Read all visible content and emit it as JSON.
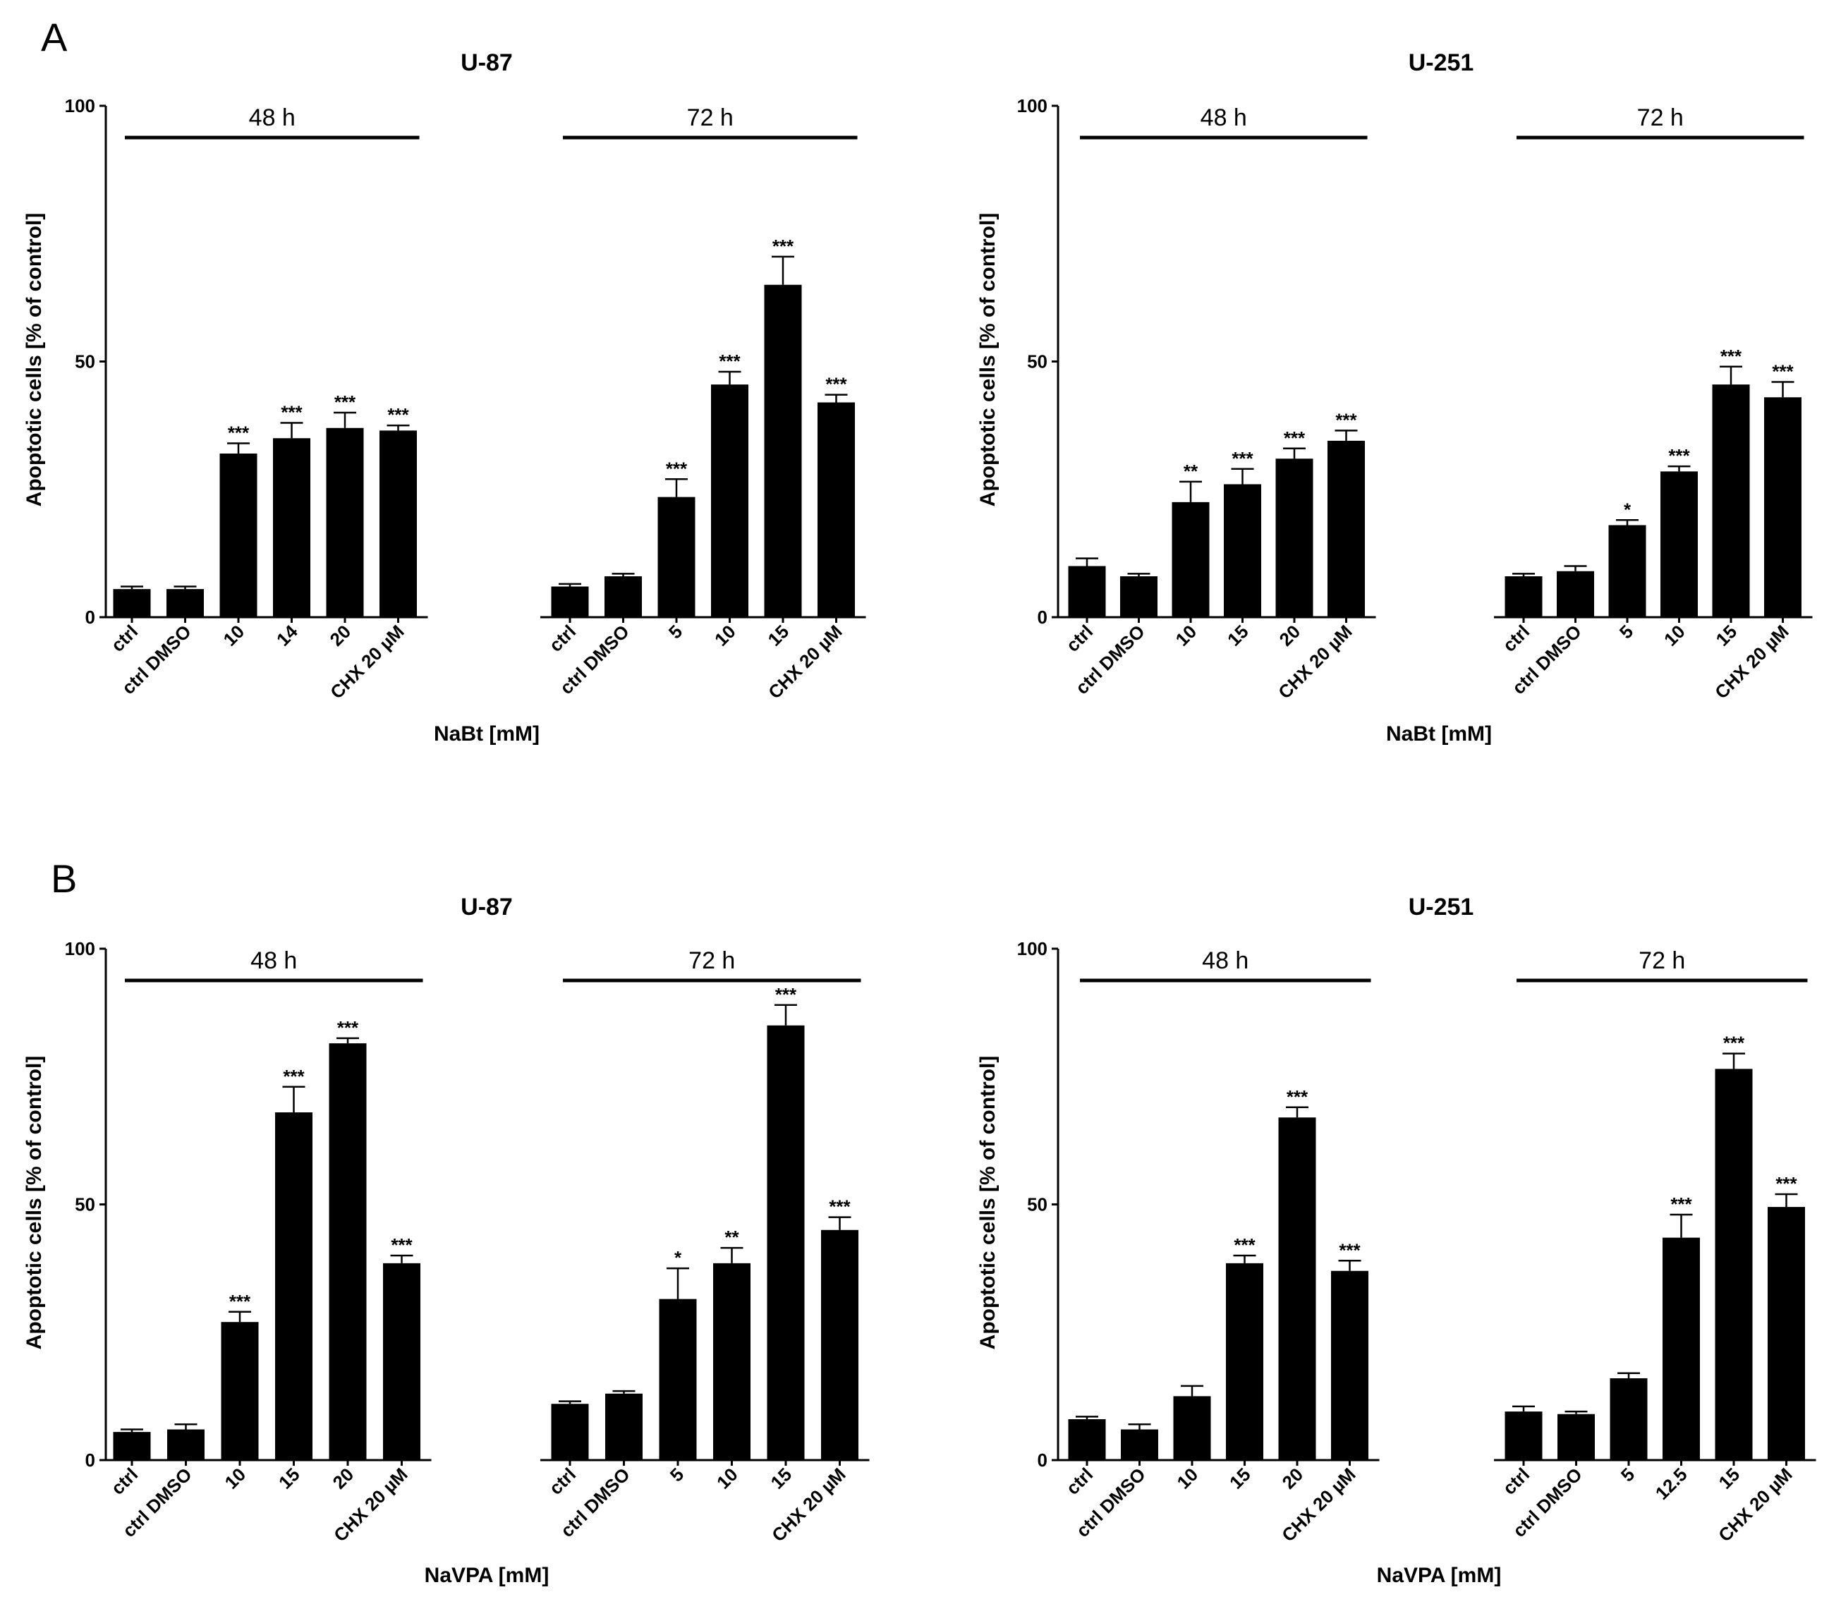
{
  "panels": [
    {
      "letter": "A"
    },
    {
      "letter": "B"
    }
  ],
  "chart_data": [
    {
      "panel": "A",
      "type": "bar",
      "title": "U-87",
      "xlabel": "NaBt [mM]",
      "ylabel": "Apoptotic cells [% of control]",
      "ylim": [
        0,
        100
      ],
      "yticks": [
        0,
        50,
        100
      ],
      "groups": [
        {
          "label": "48 h",
          "categories": [
            "ctrl",
            "ctrl DMSO",
            "10",
            "14",
            "20",
            "CHX 20 µM"
          ],
          "values": [
            5.5,
            5.5,
            32,
            35,
            37,
            36.5
          ],
          "errors": [
            0.5,
            0.5,
            2,
            3,
            3,
            1
          ],
          "significance": [
            "",
            "",
            "***",
            "***",
            "***",
            "***"
          ]
        },
        {
          "label": "72 h",
          "categories": [
            "ctrl",
            "ctrl DMSO",
            "5",
            "10",
            "15",
            "CHX 20 µM"
          ],
          "values": [
            6,
            8,
            23.5,
            45.5,
            65,
            42
          ],
          "errors": [
            0.5,
            0.5,
            3.5,
            2.5,
            5.5,
            1.5
          ],
          "significance": [
            "",
            "",
            "***",
            "***",
            "***",
            "***"
          ]
        }
      ]
    },
    {
      "panel": "A",
      "type": "bar",
      "title": "U-251",
      "xlabel": "NaBt [mM]",
      "ylabel": "Apoptotic cells [% of control]",
      "ylim": [
        0,
        100
      ],
      "yticks": [
        0,
        50,
        100
      ],
      "groups": [
        {
          "label": "48 h",
          "categories": [
            "ctrl",
            "ctrl DMSO",
            "10",
            "15",
            "20",
            "CHX 20 µM"
          ],
          "values": [
            10,
            8,
            22.5,
            26,
            31,
            34.5
          ],
          "errors": [
            1.5,
            0.5,
            4,
            3,
            2,
            2
          ],
          "significance": [
            "",
            "",
            "**",
            "***",
            "***",
            "***"
          ]
        },
        {
          "label": "72 h",
          "categories": [
            "ctrl",
            "ctrl DMSO",
            "5",
            "10",
            "15",
            "CHX 20 µM"
          ],
          "values": [
            8,
            9,
            18,
            28.5,
            45.5,
            43
          ],
          "errors": [
            0.5,
            1,
            1,
            1,
            3.5,
            3
          ],
          "significance": [
            "",
            "",
            "*",
            "***",
            "***",
            "***"
          ]
        }
      ]
    },
    {
      "panel": "B",
      "type": "bar",
      "title": "U-87",
      "xlabel": "NaVPA [mM]",
      "ylabel": "Apoptotic cells [% of control]",
      "ylim": [
        0,
        100
      ],
      "yticks": [
        0,
        50,
        100
      ],
      "groups": [
        {
          "label": "48 h",
          "categories": [
            "ctrl",
            "ctrl DMSO",
            "10",
            "15",
            "20",
            "CHX 20 µM"
          ],
          "values": [
            5.5,
            6,
            27,
            68,
            81.5,
            38.5
          ],
          "errors": [
            0.5,
            1,
            2,
            5,
            1,
            1.5
          ],
          "significance": [
            "",
            "",
            "***",
            "***",
            "***",
            "***"
          ]
        },
        {
          "label": "72 h",
          "categories": [
            "ctrl",
            "ctrl DMSO",
            "5",
            "10",
            "15",
            "CHX 20 µM"
          ],
          "values": [
            11,
            13,
            31.5,
            38.5,
            85,
            45
          ],
          "errors": [
            0.5,
            0.5,
            6,
            3,
            4,
            2.5
          ],
          "significance": [
            "",
            "",
            "*",
            "**",
            "***",
            "***"
          ]
        }
      ]
    },
    {
      "panel": "B",
      "type": "bar",
      "title": "U-251",
      "xlabel": "NaVPA [mM]",
      "ylabel": "Apoptotic cells [% of control]",
      "ylim": [
        0,
        100
      ],
      "yticks": [
        0,
        50,
        100
      ],
      "groups": [
        {
          "label": "48 h",
          "categories": [
            "ctrl",
            "ctrl DMSO",
            "10",
            "15",
            "20",
            "CHX 20 µM"
          ],
          "values": [
            8,
            6,
            12.5,
            38.5,
            67,
            37
          ],
          "errors": [
            0.5,
            1,
            2,
            1.5,
            2,
            2
          ],
          "significance": [
            "",
            "",
            "",
            "***",
            "***",
            "***"
          ]
        },
        {
          "label": "72 h",
          "categories": [
            "ctrl",
            "ctrl DMSO",
            "5",
            "12.5",
            "15",
            "CHX 20 µM"
          ],
          "values": [
            9.5,
            9,
            16,
            43.5,
            76.5,
            49.5
          ],
          "errors": [
            1,
            0.5,
            1,
            4.5,
            3,
            2.5
          ],
          "significance": [
            "",
            "",
            "",
            "***",
            "***",
            "***"
          ]
        }
      ]
    }
  ]
}
